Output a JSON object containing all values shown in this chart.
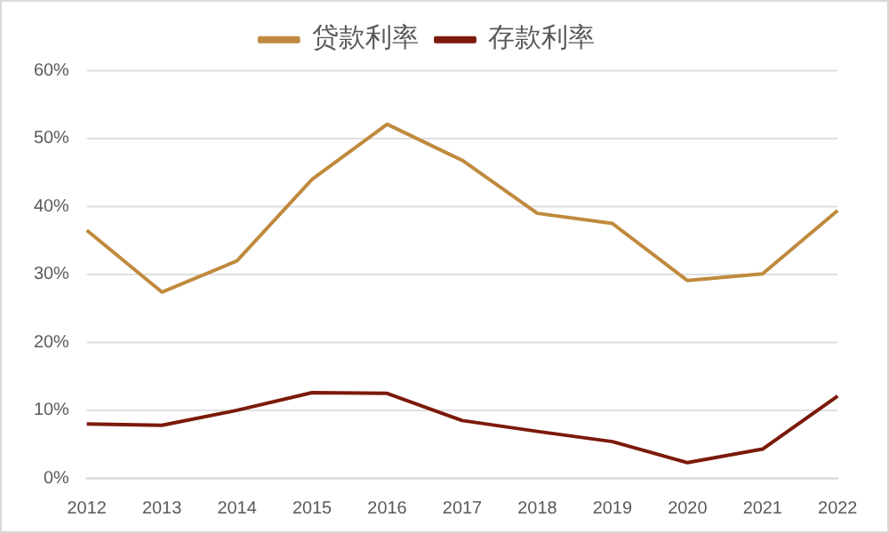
{
  "chart_data": {
    "type": "line",
    "categories": [
      "2012",
      "2013",
      "2014",
      "2015",
      "2016",
      "2017",
      "2018",
      "2019",
      "2020",
      "2021",
      "2022"
    ],
    "series": [
      {
        "name": "贷款利率",
        "color": "#c08a3e",
        "values": [
          36.5,
          27.4,
          32,
          44,
          52.1,
          46.8,
          39,
          37.5,
          29.1,
          30.1,
          39.4
        ]
      },
      {
        "name": "存款利率",
        "color": "#7b1a0a",
        "values": [
          8,
          7.8,
          10,
          12.6,
          12.5,
          8.5,
          6.9,
          5.4,
          2.3,
          4.3,
          12.1
        ]
      }
    ],
    "ylim": [
      0,
      60
    ],
    "yticks": [
      {
        "value": 0,
        "label": "0%"
      },
      {
        "value": 10,
        "label": "10%"
      },
      {
        "value": 20,
        "label": "20%"
      },
      {
        "value": 30,
        "label": "30%"
      },
      {
        "value": 40,
        "label": "40%"
      },
      {
        "value": 50,
        "label": "50%"
      },
      {
        "value": 60,
        "label": "60%"
      }
    ],
    "grid": "y",
    "legend": "top",
    "marker": "none",
    "line_style": "solid"
  }
}
